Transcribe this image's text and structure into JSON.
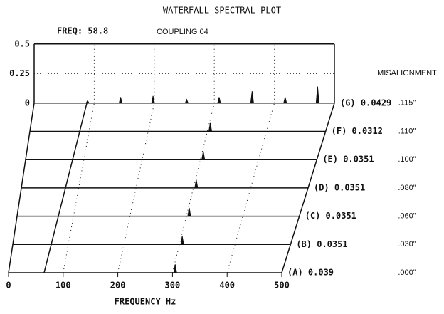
{
  "chart_data": {
    "type": "waterfall",
    "title": "WATERFALL SPECTRAL PLOT",
    "freq_label": "FREQ: 58.8",
    "coupling_label": "COUPLING 04",
    "misalignment_title": "MISALIGNMENT",
    "xlabel": "FREQUENCY Hz",
    "xlim": [
      0,
      500
    ],
    "xticks": [
      0,
      100,
      200,
      300,
      400,
      500
    ],
    "ylim": [
      0,
      0.5
    ],
    "yticks": [
      0,
      0.25,
      0.5
    ],
    "color": "#111111",
    "series": [
      {
        "name": "(A) 0.039",
        "misalignment": ".000\"",
        "x": [
          305
        ],
        "values": [
          0.07
        ]
      },
      {
        "name": "(B) 0.0351",
        "misalignment": ".030\"",
        "x": [
          305
        ],
        "values": [
          0.07
        ]
      },
      {
        "name": "(C) 0.0351",
        "misalignment": ".060\"",
        "x": [
          305
        ],
        "values": [
          0.07
        ]
      },
      {
        "name": "(D) 0.0351",
        "misalignment": ".080\"",
        "x": [
          305
        ],
        "values": [
          0.07
        ]
      },
      {
        "name": "(E) 0.0351",
        "misalignment": ".100\"",
        "x": [
          305
        ],
        "values": [
          0.07
        ]
      },
      {
        "name": "(F) 0.0312",
        "misalignment": ".110\"",
        "x": [
          305
        ],
        "values": [
          0.07
        ]
      },
      {
        "name": "(G) 0.0429",
        "misalignment": ".115\"",
        "x": [
          89,
          144,
          198,
          254,
          308,
          363,
          418,
          472
        ],
        "values": [
          0.02,
          0.05,
          0.06,
          0.03,
          0.05,
          0.1,
          0.05,
          0.14
        ]
      }
    ]
  }
}
